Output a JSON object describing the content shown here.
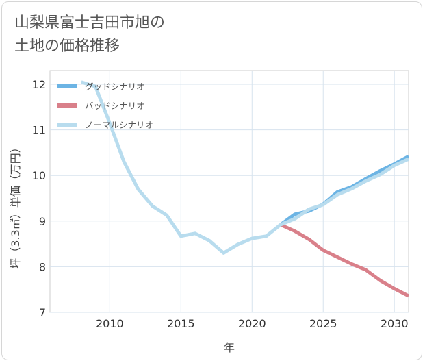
{
  "title_lines": [
    "山梨県富士吉田市旭の",
    "土地の価格推移"
  ],
  "chart_data": {
    "type": "line",
    "xlabel": "年",
    "ylabel": "坪（3.3㎡）単価（万円）",
    "xlim": [
      2005.8,
      2031
    ],
    "ylim": [
      7,
      12.3
    ],
    "xticks": [
      2010,
      2015,
      2020,
      2025,
      2030
    ],
    "yticks": [
      7,
      8,
      9,
      10,
      11,
      12
    ],
    "grid": true,
    "legend_position": "top-left",
    "series": [
      {
        "name": "グッドシナリオ",
        "color": "#6cb4e4",
        "x": [
          2022,
          2023,
          2024,
          2025,
          2026,
          2027,
          2028,
          2029,
          2030,
          2031
        ],
        "y": [
          8.92,
          9.15,
          9.22,
          9.37,
          9.64,
          9.75,
          9.93,
          10.1,
          10.25,
          10.42
        ]
      },
      {
        "name": "バッドシナリオ",
        "color": "#d9808a",
        "x": [
          2022,
          2023,
          2024,
          2025,
          2026,
          2027,
          2028,
          2029,
          2030,
          2031
        ],
        "y": [
          8.92,
          8.78,
          8.6,
          8.36,
          8.21,
          8.06,
          7.93,
          7.7,
          7.52,
          7.36
        ]
      },
      {
        "name": "ノーマルシナリオ",
        "color": "#b8dcee",
        "x": [
          2008,
          2009,
          2010,
          2011,
          2012,
          2013,
          2014,
          2015,
          2016,
          2017,
          2018,
          2019,
          2020,
          2021,
          2022,
          2023,
          2024,
          2025,
          2026,
          2027,
          2028,
          2029,
          2030,
          2031
        ],
        "y": [
          12.05,
          11.95,
          11.15,
          10.3,
          9.7,
          9.33,
          9.13,
          8.67,
          8.73,
          8.57,
          8.3,
          8.49,
          8.62,
          8.67,
          8.92,
          9.05,
          9.26,
          9.36,
          9.58,
          9.71,
          9.88,
          10.02,
          10.22,
          10.36
        ]
      }
    ]
  }
}
